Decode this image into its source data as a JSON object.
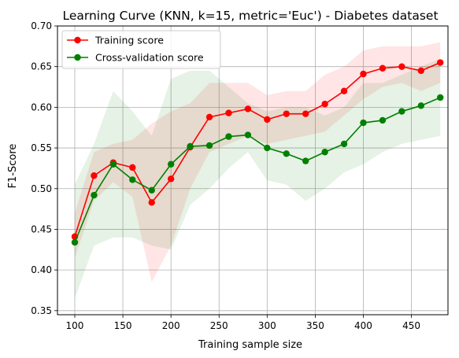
{
  "chart_data": {
    "type": "line",
    "title": "Learning Curve (KNN, k=15, metric='Euc') - Diabetes dataset",
    "xlabel": "Training sample size",
    "ylabel": "F1-Score",
    "xlim": [
      82,
      488
    ],
    "ylim": [
      0.345,
      0.7
    ],
    "xticks": [
      100,
      150,
      200,
      250,
      300,
      350,
      400,
      450
    ],
    "yticks": [
      0.35,
      0.4,
      0.45,
      0.5,
      0.55,
      0.6,
      0.65,
      0.7
    ],
    "grid": true,
    "legend_position": "upper-left",
    "x": [
      100,
      120,
      140,
      160,
      180,
      200,
      220,
      240,
      260,
      280,
      300,
      320,
      340,
      360,
      380,
      400,
      420,
      440,
      460,
      480
    ],
    "series": [
      {
        "name": "Training score",
        "color": "#ff0000",
        "band_color": "#ff0000",
        "values": [
          0.441,
          0.516,
          0.532,
          0.526,
          0.483,
          0.512,
          0.551,
          0.588,
          0.593,
          0.598,
          0.585,
          0.592,
          0.592,
          0.604,
          0.62,
          0.641,
          0.648,
          0.65,
          0.645,
          0.655
        ],
        "lower": [
          0.415,
          0.485,
          0.508,
          0.49,
          0.385,
          0.43,
          0.5,
          0.545,
          0.555,
          0.565,
          0.555,
          0.56,
          0.565,
          0.57,
          0.59,
          0.61,
          0.625,
          0.63,
          0.62,
          0.63
        ],
        "upper": [
          0.47,
          0.545,
          0.555,
          0.56,
          0.58,
          0.595,
          0.605,
          0.63,
          0.63,
          0.63,
          0.615,
          0.62,
          0.62,
          0.64,
          0.65,
          0.67,
          0.675,
          0.675,
          0.675,
          0.68
        ]
      },
      {
        "name": "Cross-validation score",
        "color": "#008000",
        "band_color": "#008000",
        "values": [
          0.434,
          0.492,
          0.53,
          0.511,
          0.498,
          0.53,
          0.552,
          0.553,
          0.564,
          0.566,
          0.55,
          0.543,
          0.534,
          0.545,
          0.555,
          0.581,
          0.584,
          0.595,
          0.602,
          0.612
        ],
        "lower": [
          0.365,
          0.43,
          0.44,
          0.44,
          0.43,
          0.425,
          0.48,
          0.5,
          0.525,
          0.545,
          0.51,
          0.505,
          0.485,
          0.5,
          0.52,
          0.53,
          0.545,
          0.555,
          0.56,
          0.565
        ],
        "upper": [
          0.505,
          0.555,
          0.62,
          0.595,
          0.565,
          0.635,
          0.645,
          0.645,
          0.625,
          0.605,
          0.595,
          0.6,
          0.6,
          0.59,
          0.6,
          0.63,
          0.63,
          0.64,
          0.65,
          0.66
        ]
      }
    ]
  }
}
